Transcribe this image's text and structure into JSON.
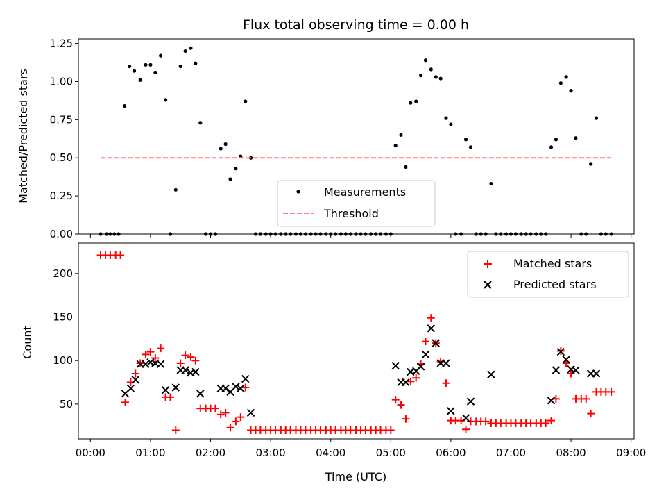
{
  "chart_data": [
    {
      "type": "scatter",
      "title": "Flux total observing time = 0.00 h",
      "xlabel": "",
      "ylabel": "Matched/Predicted stars",
      "xlim": [
        -0.2,
        9.05
      ],
      "ylim": [
        0.0,
        1.28
      ],
      "yticks": [
        0.0,
        0.25,
        0.5,
        0.75,
        1.0,
        1.25
      ],
      "ytick_labels": [
        "0.00",
        "0.25",
        "0.50",
        "0.75",
        "1.00",
        "1.25"
      ],
      "legend_position": "bottom-center",
      "series": [
        {
          "name": "Measurements",
          "color": "#000000",
          "marker": "dot",
          "points": [
            [
              0.17,
              0
            ],
            [
              0.27,
              0
            ],
            [
              0.33,
              0
            ],
            [
              0.4,
              0
            ],
            [
              0.47,
              0
            ],
            [
              0.57,
              0.84
            ],
            [
              0.65,
              1.1
            ],
            [
              0.73,
              1.07
            ],
            [
              0.83,
              1.01
            ],
            [
              0.92,
              1.11
            ],
            [
              1.0,
              1.11
            ],
            [
              1.08,
              1.06
            ],
            [
              1.17,
              1.17
            ],
            [
              1.25,
              0.88
            ],
            [
              1.33,
              0
            ],
            [
              1.42,
              0.29
            ],
            [
              1.5,
              1.1
            ],
            [
              1.58,
              1.2
            ],
            [
              1.67,
              1.22
            ],
            [
              1.75,
              1.12
            ],
            [
              1.83,
              0.73
            ],
            [
              1.92,
              0
            ],
            [
              2.0,
              0
            ],
            [
              2.08,
              0
            ],
            [
              2.17,
              0.56
            ],
            [
              2.25,
              0.59
            ],
            [
              2.33,
              0.36
            ],
            [
              2.42,
              0.43
            ],
            [
              2.5,
              0.51
            ],
            [
              2.58,
              0.87
            ],
            [
              2.67,
              0.5
            ],
            [
              2.75,
              0
            ],
            [
              2.83,
              0
            ],
            [
              2.92,
              0
            ],
            [
              3.0,
              0
            ],
            [
              3.08,
              0
            ],
            [
              3.17,
              0
            ],
            [
              3.25,
              0
            ],
            [
              3.33,
              0
            ],
            [
              3.42,
              0
            ],
            [
              3.5,
              0
            ],
            [
              3.58,
              0
            ],
            [
              3.67,
              0
            ],
            [
              3.75,
              0
            ],
            [
              3.83,
              0
            ],
            [
              3.92,
              0
            ],
            [
              4.0,
              0
            ],
            [
              4.08,
              0
            ],
            [
              4.17,
              0
            ],
            [
              4.25,
              0
            ],
            [
              4.33,
              0
            ],
            [
              4.42,
              0
            ],
            [
              4.5,
              0
            ],
            [
              4.58,
              0
            ],
            [
              4.67,
              0
            ],
            [
              4.75,
              0
            ],
            [
              4.83,
              0
            ],
            [
              4.92,
              0
            ],
            [
              5.0,
              0
            ],
            [
              5.08,
              0.58
            ],
            [
              5.17,
              0.65
            ],
            [
              5.25,
              0.44
            ],
            [
              5.33,
              0.86
            ],
            [
              5.42,
              0.87
            ],
            [
              5.5,
              1.04
            ],
            [
              5.58,
              1.14
            ],
            [
              5.67,
              1.08
            ],
            [
              5.75,
              1.03
            ],
            [
              5.83,
              1.02
            ],
            [
              5.92,
              0.76
            ],
            [
              6.0,
              0.72
            ],
            [
              6.08,
              0
            ],
            [
              6.17,
              0
            ],
            [
              6.25,
              0.62
            ],
            [
              6.33,
              0.57
            ],
            [
              6.42,
              0
            ],
            [
              6.5,
              0
            ],
            [
              6.58,
              0
            ],
            [
              6.67,
              0.33
            ],
            [
              6.75,
              0
            ],
            [
              6.83,
              0
            ],
            [
              6.92,
              0
            ],
            [
              7.0,
              0
            ],
            [
              7.08,
              0
            ],
            [
              7.17,
              0
            ],
            [
              7.25,
              0
            ],
            [
              7.33,
              0
            ],
            [
              7.42,
              0
            ],
            [
              7.5,
              0
            ],
            [
              7.58,
              0
            ],
            [
              7.67,
              0.57
            ],
            [
              7.75,
              0.62
            ],
            [
              7.83,
              0.99
            ],
            [
              7.92,
              1.03
            ],
            [
              8.0,
              0.94
            ],
            [
              8.08,
              0.63
            ],
            [
              8.17,
              0
            ],
            [
              8.25,
              0
            ],
            [
              8.33,
              0.46
            ],
            [
              8.42,
              0.76
            ],
            [
              8.5,
              0
            ],
            [
              8.58,
              0
            ],
            [
              8.67,
              0
            ]
          ]
        },
        {
          "name": "Threshold",
          "color": "#ff7f7f",
          "style": "dashed",
          "x": [
            0.17,
            8.67
          ],
          "y": [
            0.5,
            0.5
          ]
        }
      ]
    },
    {
      "type": "scatter",
      "title": "",
      "xlabel": "Time (UTC)",
      "ylabel": "Count",
      "xlim": [
        -0.2,
        9.05
      ],
      "ylim": [
        10,
        235
      ],
      "yticks": [
        50,
        100,
        150,
        200
      ],
      "ytick_labels": [
        "50",
        "100",
        "150",
        "200"
      ],
      "xticks": [
        0,
        1,
        2,
        3,
        4,
        5,
        6,
        7,
        8,
        9
      ],
      "xtick_labels": [
        "00:00",
        "01:00",
        "02:00",
        "03:00",
        "04:00",
        "05:00",
        "06:00",
        "07:00",
        "08:00",
        "09:00"
      ],
      "legend_position": "top-right",
      "series": [
        {
          "name": "Matched stars",
          "color": "#ff0000",
          "marker": "plus",
          "points": [
            [
              0.17,
              221
            ],
            [
              0.25,
              221
            ],
            [
              0.33,
              221
            ],
            [
              0.42,
              221
            ],
            [
              0.5,
              221
            ],
            [
              0.58,
              52
            ],
            [
              0.67,
              75
            ],
            [
              0.75,
              85
            ],
            [
              0.83,
              97
            ],
            [
              0.92,
              107
            ],
            [
              1.0,
              110
            ],
            [
              1.08,
              103
            ],
            [
              1.17,
              114
            ],
            [
              1.25,
              58
            ],
            [
              1.33,
              58
            ],
            [
              1.42,
              20
            ],
            [
              1.5,
              97
            ],
            [
              1.58,
              106
            ],
            [
              1.67,
              104
            ],
            [
              1.75,
              100
            ],
            [
              1.83,
              45
            ],
            [
              1.92,
              45
            ],
            [
              2.0,
              45
            ],
            [
              2.08,
              45
            ],
            [
              2.17,
              38
            ],
            [
              2.25,
              40
            ],
            [
              2.33,
              23
            ],
            [
              2.42,
              30
            ],
            [
              2.5,
              35
            ],
            [
              2.58,
              69
            ],
            [
              2.67,
              20
            ],
            [
              2.75,
              20
            ],
            [
              2.83,
              20
            ],
            [
              2.92,
              20
            ],
            [
              3.0,
              20
            ],
            [
              3.08,
              20
            ],
            [
              3.17,
              20
            ],
            [
              3.25,
              20
            ],
            [
              3.33,
              20
            ],
            [
              3.42,
              20
            ],
            [
              3.5,
              20
            ],
            [
              3.58,
              20
            ],
            [
              3.67,
              20
            ],
            [
              3.75,
              20
            ],
            [
              3.83,
              20
            ],
            [
              3.92,
              20
            ],
            [
              4.0,
              20
            ],
            [
              4.08,
              20
            ],
            [
              4.17,
              20
            ],
            [
              4.25,
              20
            ],
            [
              4.33,
              20
            ],
            [
              4.42,
              20
            ],
            [
              4.5,
              20
            ],
            [
              4.58,
              20
            ],
            [
              4.67,
              20
            ],
            [
              4.75,
              20
            ],
            [
              4.83,
              20
            ],
            [
              4.92,
              20
            ],
            [
              5.0,
              20
            ],
            [
              5.08,
              55
            ],
            [
              5.17,
              49
            ],
            [
              5.25,
              33
            ],
            [
              5.33,
              76
            ],
            [
              5.42,
              80
            ],
            [
              5.5,
              96
            ],
            [
              5.58,
              122
            ],
            [
              5.67,
              149
            ],
            [
              5.75,
              120
            ],
            [
              5.83,
              99
            ],
            [
              5.92,
              74
            ],
            [
              6.0,
              31
            ],
            [
              6.08,
              31
            ],
            [
              6.17,
              31
            ],
            [
              6.25,
              21
            ],
            [
              6.33,
              30
            ],
            [
              6.42,
              30
            ],
            [
              6.5,
              30
            ],
            [
              6.58,
              30
            ],
            [
              6.67,
              28
            ],
            [
              6.75,
              28
            ],
            [
              6.83,
              28
            ],
            [
              6.92,
              28
            ],
            [
              7.0,
              28
            ],
            [
              7.08,
              28
            ],
            [
              7.17,
              28
            ],
            [
              7.25,
              28
            ],
            [
              7.33,
              28
            ],
            [
              7.42,
              28
            ],
            [
              7.5,
              28
            ],
            [
              7.58,
              28
            ],
            [
              7.67,
              31
            ],
            [
              7.75,
              56
            ],
            [
              7.83,
              111
            ],
            [
              7.92,
              97
            ],
            [
              8.0,
              85
            ],
            [
              8.08,
              56
            ],
            [
              8.17,
              56
            ],
            [
              8.25,
              56
            ],
            [
              8.33,
              39
            ],
            [
              8.42,
              64
            ],
            [
              8.5,
              64
            ],
            [
              8.58,
              64
            ],
            [
              8.67,
              64
            ]
          ]
        },
        {
          "name": "Predicted stars",
          "color": "#000000",
          "marker": "x",
          "points": [
            [
              0.58,
              62
            ],
            [
              0.67,
              68
            ],
            [
              0.75,
              78
            ],
            [
              0.83,
              96
            ],
            [
              0.92,
              96
            ],
            [
              1.0,
              98
            ],
            [
              1.08,
              97
            ],
            [
              1.17,
              96
            ],
            [
              1.25,
              66
            ],
            [
              1.42,
              69
            ],
            [
              1.5,
              89
            ],
            [
              1.58,
              89
            ],
            [
              1.67,
              86
            ],
            [
              1.75,
              87
            ],
            [
              1.83,
              62
            ],
            [
              2.17,
              68
            ],
            [
              2.25,
              68
            ],
            [
              2.33,
              64
            ],
            [
              2.42,
              70
            ],
            [
              2.5,
              68
            ],
            [
              2.58,
              79
            ],
            [
              2.67,
              40
            ],
            [
              5.08,
              94
            ],
            [
              5.17,
              75
            ],
            [
              5.25,
              75
            ],
            [
              5.33,
              87
            ],
            [
              5.42,
              88
            ],
            [
              5.5,
              93
            ],
            [
              5.58,
              107
            ],
            [
              5.67,
              137
            ],
            [
              5.75,
              120
            ],
            [
              5.83,
              97
            ],
            [
              5.92,
              97
            ],
            [
              6.0,
              42
            ],
            [
              6.25,
              34
            ],
            [
              6.33,
              53
            ],
            [
              6.67,
              84
            ],
            [
              7.67,
              54
            ],
            [
              7.75,
              89
            ],
            [
              7.83,
              110
            ],
            [
              7.92,
              101
            ],
            [
              8.0,
              90
            ],
            [
              8.08,
              89
            ],
            [
              8.33,
              85
            ],
            [
              8.42,
              85
            ]
          ]
        }
      ]
    }
  ]
}
